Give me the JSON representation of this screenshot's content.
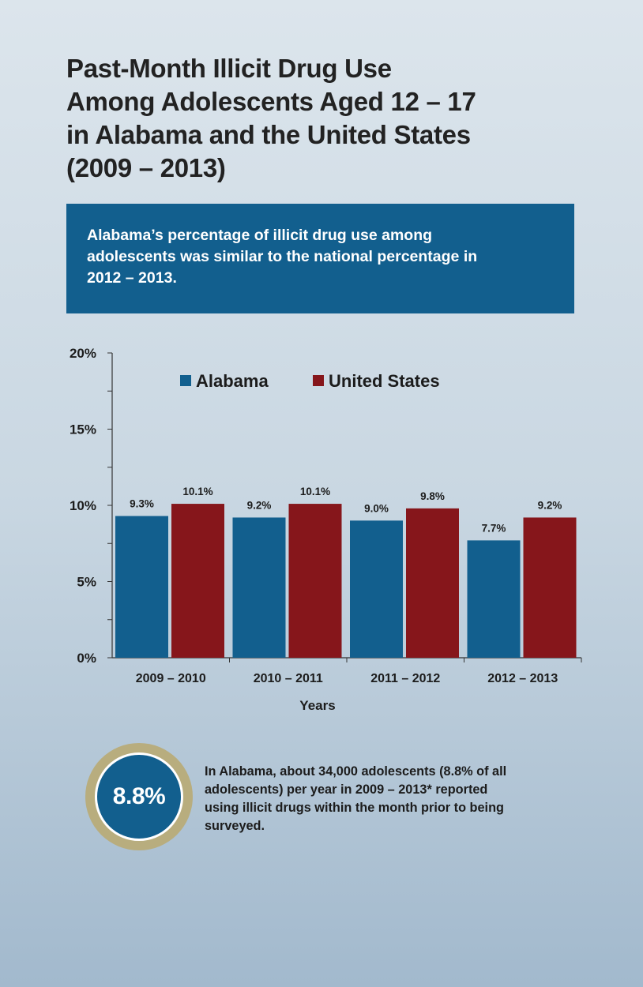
{
  "title_lines": [
    "Past-Month Illicit Drug Use",
    "Among Adolescents Aged 12 – 17",
    "in Alabama and the United States",
    "(2009 – 2013)"
  ],
  "callout_lines": [
    "Alabama’s percentage of illicit drug use among",
    "adolescents was similar to the national percentage in",
    "2012 – 2013."
  ],
  "chart_data": {
    "type": "bar",
    "categories": [
      "2009 – 2010",
      "2010 – 2011",
      "2011 – 2012",
      "2012 – 2013"
    ],
    "series": [
      {
        "name": "Alabama",
        "color": "#125f8e",
        "values": [
          9.3,
          9.2,
          9.0,
          7.7
        ],
        "labels": [
          "9.3%",
          "9.2%",
          "9.0%",
          "7.7%"
        ]
      },
      {
        "name": "United States",
        "color": "#86161b",
        "values": [
          10.1,
          10.1,
          9.8,
          9.2
        ],
        "labels": [
          "10.1%",
          "10.1%",
          "9.8%",
          "9.2%"
        ]
      }
    ],
    "xlabel": "Years",
    "ylabel": "",
    "ylim": [
      0,
      20
    ],
    "yticks": [
      0,
      5,
      10,
      15,
      20
    ],
    "ytick_labels": [
      "0%",
      "5%",
      "10%",
      "15%",
      "20%"
    ],
    "legend_position": "top-center",
    "grid": false
  },
  "stat": {
    "value": "8.8%",
    "ring_color": "#b8ad7e",
    "lines": [
      "In Alabama, about 34,000 adolescents (8.8% of  all",
      "adolescents) per year in 2009 – 2013* reported",
      "using illicit drugs within the month prior to being",
      "surveyed."
    ]
  }
}
